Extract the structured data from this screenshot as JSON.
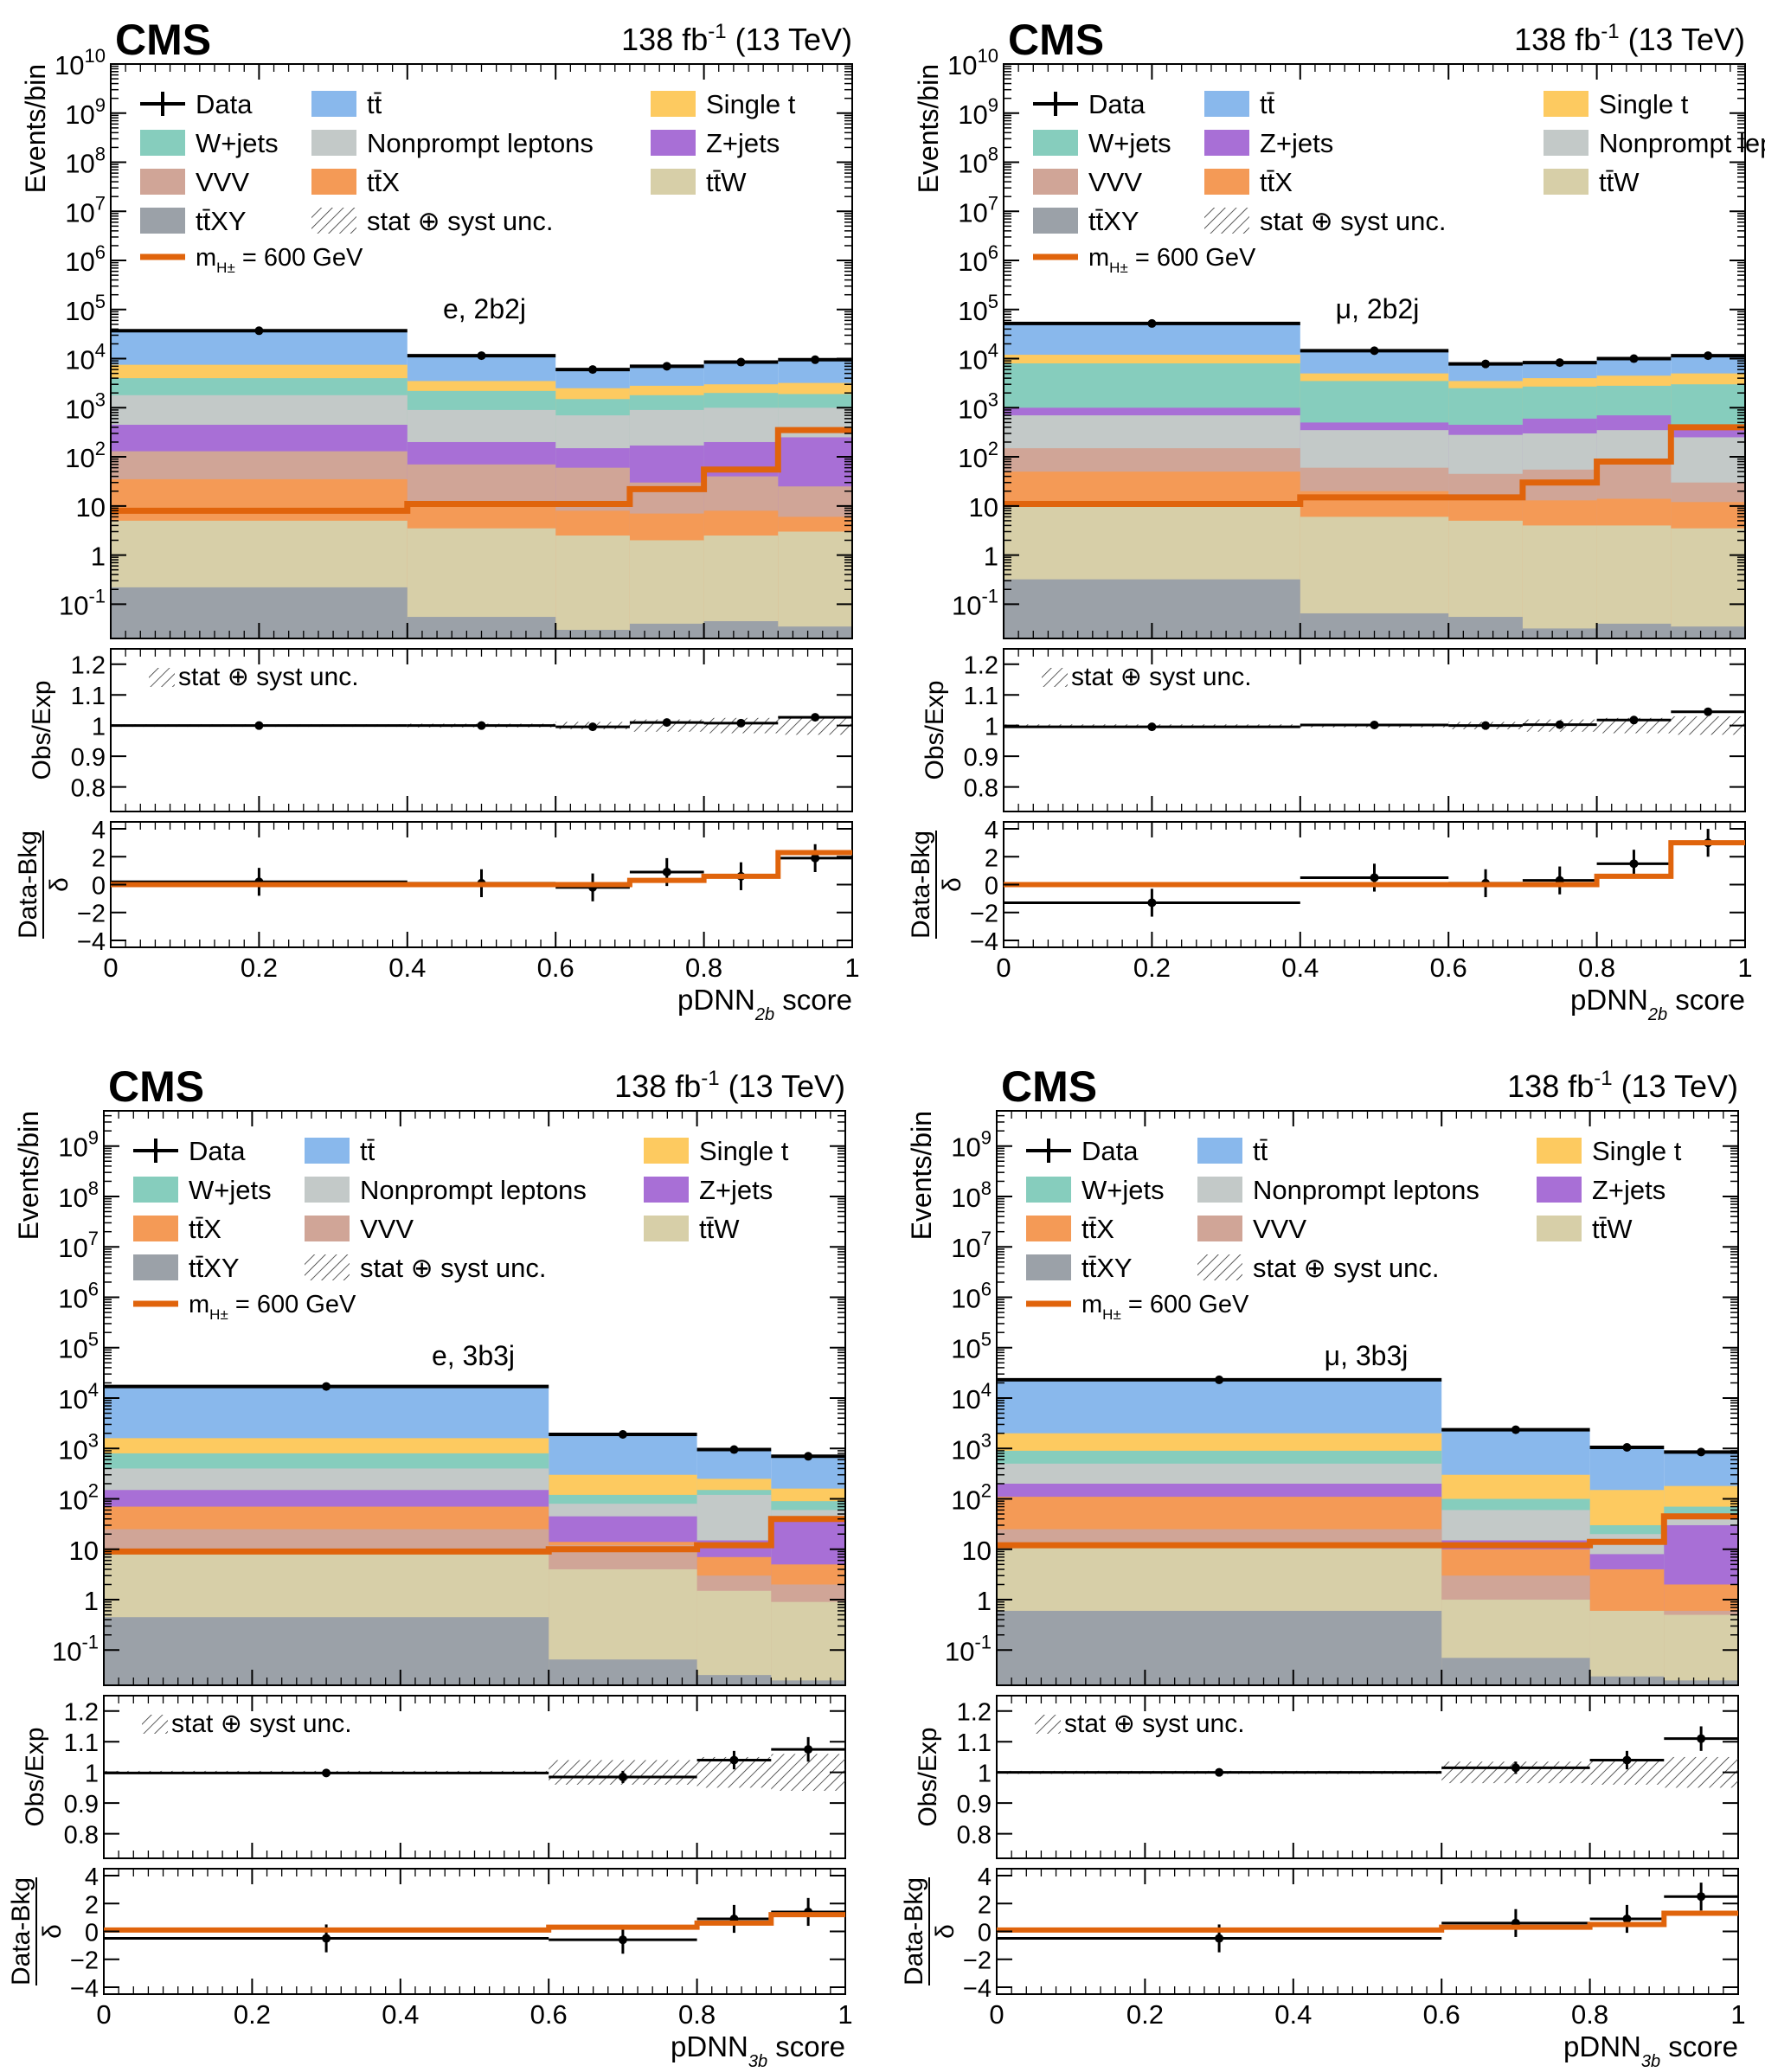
{
  "colors": {
    "data": "#000000",
    "ttbar": "#89b8ec",
    "singlet": "#fdca60",
    "wjets": "#86cdbd",
    "nonprompt": "#c3c9c8",
    "zjets": "#a86fd6",
    "vvv": "#d0a597",
    "ttx": "#f49a56",
    "ttw": "#d7cfa8",
    "ttxy": "#9ba1a8",
    "signal": "#e0640c"
  },
  "chart_data": [
    {
      "type": "bar",
      "stacked": true,
      "label_cms": "CMS",
      "lumi_prefix": "138 fb",
      "lumi_sup": "-1",
      "lumi_suffix": " (13 TeV)",
      "region": "e, 2b2j",
      "xlabel": "pDNN",
      "xlabel_sub": "2b",
      "xlabel_suffix": " score",
      "ylabel": "Events/bin",
      "ratio_ylabel": "Obs/Exp",
      "pull_ylabel_num": "Data-Bkg",
      "pull_ylabel_den": "δ",
      "unc_label": "stat ⊕ syst unc.",
      "signal_label": "= 600 GeV",
      "ylim": [
        0.02,
        10000000000.0
      ],
      "ymax_exp": 10,
      "ymin_exp": -1,
      "ratio_ylim": [
        0.72,
        1.25
      ],
      "pull_ylim": [
        -4.5,
        4.5
      ],
      "xlim": [
        0,
        1
      ],
      "xticks": [
        "0",
        "0.2",
        "0.4",
        "0.6",
        "0.8",
        "1"
      ],
      "bins": [
        0,
        0.4,
        0.6,
        0.7,
        0.8,
        0.9,
        1.0
      ],
      "legend": [
        {
          "key": "data",
          "label": "Data",
          "col": 0
        },
        {
          "key": "ttbar",
          "label": "tt̄",
          "col": 1
        },
        {
          "key": "singlet",
          "label": "Single t",
          "col": 2
        },
        {
          "key": "wjets",
          "label": "W+jets",
          "col": 0
        },
        {
          "key": "nonprompt",
          "label": "Nonprompt leptons",
          "col": 1
        },
        {
          "key": "zjets",
          "label": "Z+jets",
          "col": 2
        },
        {
          "key": "vvv",
          "label": "VVV",
          "col": 0
        },
        {
          "key": "ttx",
          "label": "tt̄X",
          "col": 1
        },
        {
          "key": "ttw",
          "label": "tt̄W",
          "col": 2
        },
        {
          "key": "ttxy",
          "label": "tt̄XY",
          "col": 0
        },
        {
          "key": "unc",
          "label": "stat ⊕ syst unc.",
          "col": 1
        }
      ],
      "stack_tops": [
        {
          "key": "ttxy",
          "values": [
            0.22,
            0.055,
            0.03,
            0.04,
            0.045,
            0.035
          ]
        },
        {
          "key": "ttw",
          "values": [
            5,
            3.5,
            2.5,
            2,
            2.5,
            3
          ]
        },
        {
          "key": "ttx",
          "values": [
            35,
            10,
            8,
            7,
            8,
            6
          ]
        },
        {
          "key": "vvv",
          "values": [
            130,
            70,
            60,
            30,
            40,
            25
          ]
        },
        {
          "key": "zjets",
          "values": [
            450,
            200,
            150,
            170,
            200,
            250
          ]
        },
        {
          "key": "nonprompt",
          "values": [
            1800,
            900,
            700,
            900,
            1000,
            1000
          ]
        },
        {
          "key": "wjets",
          "values": [
            4000,
            2200,
            1500,
            1800,
            2000,
            1900
          ]
        },
        {
          "key": "singlet",
          "values": [
            7500,
            3500,
            2500,
            2800,
            3000,
            3200
          ]
        },
        {
          "key": "ttbar",
          "values": [
            36000,
            11000,
            6000,
            7000,
            8000,
            9000
          ]
        }
      ],
      "data_values": [
        37000,
        11500,
        6000,
        7000,
        8500,
        9500
      ],
      "signal_values": [
        8,
        11,
        11,
        22,
        55,
        350
      ],
      "ratio_values": [
        1.0,
        1.0,
        0.996,
        1.01,
        1.008,
        1.027
      ],
      "ratio_errors": [
        0.003,
        0.005,
        0.008,
        0.01,
        0.01,
        0.01
      ],
      "unc_bands": [
        0.004,
        0.006,
        0.012,
        0.02,
        0.025,
        0.03
      ],
      "pull_values": [
        0.2,
        0.1,
        -0.2,
        0.9,
        0.6,
        1.9
      ],
      "pull_errors": [
        1,
        1,
        1,
        1,
        1,
        1
      ],
      "pull_signal": [
        0,
        0,
        0,
        0.3,
        0.6,
        2.3
      ]
    },
    {
      "type": "bar",
      "stacked": true,
      "label_cms": "CMS",
      "lumi_prefix": "138 fb",
      "lumi_sup": "-1",
      "lumi_suffix": " (13 TeV)",
      "region": "μ, 2b2j",
      "xlabel": "pDNN",
      "xlabel_sub": "2b",
      "xlabel_suffix": " score",
      "ylabel": "Events/bin",
      "ratio_ylabel": "Obs/Exp",
      "pull_ylabel_num": "Data-Bkg",
      "pull_ylabel_den": "δ",
      "unc_label": "stat ⊕ syst unc.",
      "signal_label": "= 600 GeV",
      "ylim": [
        0.02,
        10000000000.0
      ],
      "ymax_exp": 10,
      "ymin_exp": -1,
      "ratio_ylim": [
        0.72,
        1.25
      ],
      "pull_ylim": [
        -4.5,
        4.5
      ],
      "xlim": [
        0,
        1
      ],
      "xticks": [
        "0",
        "0.2",
        "0.4",
        "0.6",
        "0.8",
        "1"
      ],
      "bins": [
        0,
        0.4,
        0.6,
        0.7,
        0.8,
        0.9,
        1.0
      ],
      "legend": [
        {
          "key": "data",
          "label": "Data",
          "col": 0
        },
        {
          "key": "ttbar",
          "label": "tt̄",
          "col": 1
        },
        {
          "key": "singlet",
          "label": "Single t",
          "col": 2
        },
        {
          "key": "wjets",
          "label": "W+jets",
          "col": 0
        },
        {
          "key": "zjets",
          "label": "Z+jets",
          "col": 1
        },
        {
          "key": "nonprompt",
          "label": "Nonprompt leptons",
          "col": 2
        },
        {
          "key": "vvv",
          "label": "VVV",
          "col": 0
        },
        {
          "key": "ttx",
          "label": "tt̄X",
          "col": 1
        },
        {
          "key": "ttw",
          "label": "tt̄W",
          "col": 2
        },
        {
          "key": "ttxy",
          "label": "tt̄XY",
          "col": 0
        },
        {
          "key": "unc",
          "label": "stat ⊕ syst unc.",
          "col": 1
        }
      ],
      "stack_tops": [
        {
          "key": "ttxy",
          "values": [
            0.32,
            0.065,
            0.055,
            0.032,
            0.04,
            0.035
          ]
        },
        {
          "key": "ttw",
          "values": [
            10,
            6,
            5,
            4,
            4,
            3.5
          ]
        },
        {
          "key": "ttx",
          "values": [
            50,
            20,
            14,
            13,
            14,
            12
          ]
        },
        {
          "key": "vvv",
          "values": [
            150,
            60,
            45,
            55,
            70,
            30
          ]
        },
        {
          "key": "nonprompt",
          "values": [
            700,
            350,
            280,
            300,
            350,
            250
          ]
        },
        {
          "key": "zjets",
          "values": [
            1000,
            500,
            450,
            600,
            700,
            400
          ]
        },
        {
          "key": "wjets",
          "values": [
            8000,
            3500,
            2500,
            2700,
            2800,
            3000
          ]
        },
        {
          "key": "singlet",
          "values": [
            12000,
            5000,
            3500,
            4000,
            4500,
            5000
          ]
        },
        {
          "key": "ttbar",
          "values": [
            52000,
            14000,
            7800,
            8200,
            9800,
            11000
          ]
        }
      ],
      "data_values": [
        52000,
        14500,
        7800,
        8300,
        10000,
        11500
      ],
      "signal_values": [
        11,
        15,
        15,
        30,
        80,
        400
      ],
      "ratio_values": [
        0.996,
        1.002,
        1.0,
        1.003,
        1.018,
        1.045
      ],
      "ratio_errors": [
        0.003,
        0.005,
        0.008,
        0.01,
        0.01,
        0.01
      ],
      "unc_bands": [
        0.004,
        0.006,
        0.012,
        0.02,
        0.025,
        0.03
      ],
      "pull_values": [
        -1.3,
        0.5,
        0.1,
        0.3,
        1.5,
        3.0
      ],
      "pull_errors": [
        1,
        1,
        1,
        1,
        1,
        1
      ],
      "pull_signal": [
        0,
        0,
        0,
        0,
        0.6,
        3.0
      ]
    },
    {
      "type": "bar",
      "stacked": true,
      "label_cms": "CMS",
      "lumi_prefix": "138 fb",
      "lumi_sup": "-1",
      "lumi_suffix": " (13 TeV)",
      "region": "e, 3b3j",
      "xlabel": "pDNN",
      "xlabel_sub": "3b",
      "xlabel_suffix": " score",
      "ylabel": "Events/bin",
      "ratio_ylabel": "Obs/Exp",
      "pull_ylabel_num": "Data-Bkg",
      "pull_ylabel_den": "δ",
      "unc_label": "stat ⊕ syst unc.",
      "signal_label": "= 600 GeV",
      "ylim": [
        0.02,
        5000000000.0
      ],
      "ymax_exp": 9,
      "ymin_exp": -1,
      "ratio_ylim": [
        0.72,
        1.25
      ],
      "pull_ylim": [
        -4.5,
        4.5
      ],
      "xlim": [
        0,
        1
      ],
      "xticks": [
        "0",
        "0.2",
        "0.4",
        "0.6",
        "0.8",
        "1"
      ],
      "bins": [
        0,
        0.6,
        0.8,
        0.9,
        1.0
      ],
      "legend": [
        {
          "key": "data",
          "label": "Data",
          "col": 0
        },
        {
          "key": "ttbar",
          "label": "tt̄",
          "col": 1
        },
        {
          "key": "singlet",
          "label": "Single t",
          "col": 2
        },
        {
          "key": "wjets",
          "label": "W+jets",
          "col": 0
        },
        {
          "key": "nonprompt",
          "label": "Nonprompt leptons",
          "col": 1
        },
        {
          "key": "zjets",
          "label": "Z+jets",
          "col": 2
        },
        {
          "key": "ttx",
          "label": "tt̄X",
          "col": 0
        },
        {
          "key": "vvv",
          "label": "VVV",
          "col": 1
        },
        {
          "key": "ttw",
          "label": "tt̄W",
          "col": 2
        },
        {
          "key": "ttxy",
          "label": "tt̄XY",
          "col": 0
        },
        {
          "key": "unc",
          "label": "stat ⊕ syst unc.",
          "col": 1
        }
      ],
      "stack_tops": [
        {
          "key": "ttxy",
          "values": [
            0.45,
            0.065,
            0.032,
            0.025
          ]
        },
        {
          "key": "ttw",
          "values": [
            10,
            4,
            1.5,
            0.9
          ]
        },
        {
          "key": "vvv",
          "values": [
            25,
            12,
            3,
            2
          ]
        },
        {
          "key": "ttx",
          "values": [
            70,
            14,
            7,
            5
          ]
        },
        {
          "key": "zjets",
          "values": [
            150,
            45,
            15,
            40
          ]
        },
        {
          "key": "nonprompt",
          "values": [
            400,
            80,
            120,
            60
          ]
        },
        {
          "key": "wjets",
          "values": [
            800,
            120,
            150,
            90
          ]
        },
        {
          "key": "singlet",
          "values": [
            1600,
            300,
            250,
            160
          ]
        },
        {
          "key": "ttbar",
          "values": [
            17000,
            1900,
            950,
            700
          ]
        }
      ],
      "data_values": [
        17000,
        1900,
        950,
        700
      ],
      "signal_values": [
        9,
        10,
        12,
        40
      ],
      "ratio_values": [
        0.998,
        0.985,
        1.04,
        1.075
      ],
      "ratio_errors": [
        0.003,
        0.02,
        0.03,
        0.04
      ],
      "unc_bands": [
        0.005,
        0.04,
        0.05,
        0.06
      ],
      "pull_values": [
        -0.5,
        -0.6,
        0.9,
        1.4
      ],
      "pull_errors": [
        1,
        1,
        1,
        1
      ],
      "pull_signal": [
        0.1,
        0.3,
        0.6,
        1.2
      ]
    },
    {
      "type": "bar",
      "stacked": true,
      "label_cms": "CMS",
      "lumi_prefix": "138 fb",
      "lumi_sup": "-1",
      "lumi_suffix": " (13 TeV)",
      "region": "μ, 3b3j",
      "xlabel": "pDNN",
      "xlabel_sub": "3b",
      "xlabel_suffix": " score",
      "ylabel": "Events/bin",
      "ratio_ylabel": "Obs/Exp",
      "pull_ylabel_num": "Data-Bkg",
      "pull_ylabel_den": "δ",
      "unc_label": "stat ⊕ syst unc.",
      "signal_label": "= 600 GeV",
      "ylim": [
        0.02,
        5000000000.0
      ],
      "ymax_exp": 9,
      "ymin_exp": -1,
      "ratio_ylim": [
        0.72,
        1.25
      ],
      "pull_ylim": [
        -4.5,
        4.5
      ],
      "xlim": [
        0,
        1
      ],
      "xticks": [
        "0",
        "0.2",
        "0.4",
        "0.6",
        "0.8",
        "1"
      ],
      "bins": [
        0,
        0.6,
        0.8,
        0.9,
        1.0
      ],
      "legend": [
        {
          "key": "data",
          "label": "Data",
          "col": 0
        },
        {
          "key": "ttbar",
          "label": "tt̄",
          "col": 1
        },
        {
          "key": "singlet",
          "label": "Single t",
          "col": 2
        },
        {
          "key": "wjets",
          "label": "W+jets",
          "col": 0
        },
        {
          "key": "nonprompt",
          "label": "Nonprompt leptons",
          "col": 1
        },
        {
          "key": "zjets",
          "label": "Z+jets",
          "col": 2
        },
        {
          "key": "ttx",
          "label": "tt̄X",
          "col": 0
        },
        {
          "key": "vvv",
          "label": "VVV",
          "col": 1
        },
        {
          "key": "ttw",
          "label": "tt̄W",
          "col": 2
        },
        {
          "key": "ttxy",
          "label": "tt̄XY",
          "col": 0
        },
        {
          "key": "unc",
          "label": "stat ⊕ syst unc.",
          "col": 1
        }
      ],
      "stack_tops": [
        {
          "key": "ttxy",
          "values": [
            0.6,
            0.07,
            0.03,
            0.025
          ]
        },
        {
          "key": "ttw",
          "values": [
            12,
            1,
            0.6,
            0.5
          ]
        },
        {
          "key": "vvv",
          "values": [
            25,
            3,
            0.6,
            0.6
          ]
        },
        {
          "key": "ttx",
          "values": [
            110,
            10,
            4,
            2
          ]
        },
        {
          "key": "zjets",
          "values": [
            200,
            15,
            8,
            30
          ]
        },
        {
          "key": "nonprompt",
          "values": [
            500,
            60,
            20,
            50
          ]
        },
        {
          "key": "wjets",
          "values": [
            900,
            100,
            30,
            70
          ]
        },
        {
          "key": "singlet",
          "values": [
            2000,
            300,
            150,
            180
          ]
        },
        {
          "key": "ttbar",
          "values": [
            23000,
            2300,
            1000,
            800
          ]
        }
      ],
      "data_values": [
        23000,
        2350,
        1050,
        850
      ],
      "signal_values": [
        12,
        12,
        14,
        45
      ],
      "ratio_values": [
        1.0,
        1.015,
        1.04,
        1.11
      ],
      "ratio_errors": [
        0.003,
        0.02,
        0.03,
        0.04
      ],
      "unc_bands": [
        0.005,
        0.035,
        0.04,
        0.05
      ],
      "pull_values": [
        -0.5,
        0.6,
        0.9,
        2.5
      ],
      "pull_errors": [
        1,
        1,
        1,
        1
      ],
      "pull_signal": [
        0.1,
        0.3,
        0.5,
        1.3
      ]
    }
  ]
}
